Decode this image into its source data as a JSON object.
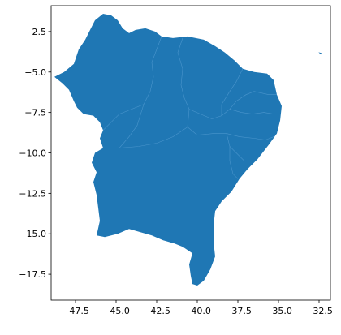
{
  "chart_data": {
    "type": "map",
    "title": "",
    "xlabel": "",
    "ylabel": "",
    "xlim": [
      -49.0,
      -31.8
    ],
    "ylim": [
      -19.1,
      -0.9
    ],
    "grid": false,
    "fill_color": "#1f77b4",
    "x_ticks": [
      -47.5,
      -45.0,
      -42.5,
      -40.0,
      -37.5,
      -35.0,
      -32.5
    ],
    "x_tick_labels": [
      "−47.5",
      "−45.0",
      "−42.5",
      "−40.0",
      "−37.5",
      "−35.0",
      "−32.5"
    ],
    "y_ticks": [
      -2.5,
      -5.0,
      -7.5,
      -10.0,
      -12.5,
      -15.0,
      -17.5
    ],
    "y_tick_labels": [
      "−2.5",
      "−5.0",
      "−7.5",
      "−10.0",
      "−12.5",
      "−15.0",
      "−17.5"
    ],
    "outline": [
      [
        -48.8,
        -5.3
      ],
      [
        -48.2,
        -5.0
      ],
      [
        -47.6,
        -4.5
      ],
      [
        -47.3,
        -3.6
      ],
      [
        -46.9,
        -3.0
      ],
      [
        -46.6,
        -2.4
      ],
      [
        -46.3,
        -1.8
      ],
      [
        -45.8,
        -1.4
      ],
      [
        -45.3,
        -1.5
      ],
      [
        -44.9,
        -1.8
      ],
      [
        -44.6,
        -2.3
      ],
      [
        -44.2,
        -2.6
      ],
      [
        -43.8,
        -2.4
      ],
      [
        -43.2,
        -2.3
      ],
      [
        -42.6,
        -2.5
      ],
      [
        -42.2,
        -2.8
      ],
      [
        -41.5,
        -2.9
      ],
      [
        -40.6,
        -2.8
      ],
      [
        -39.6,
        -3.0
      ],
      [
        -38.9,
        -3.4
      ],
      [
        -38.3,
        -3.8
      ],
      [
        -37.7,
        -4.3
      ],
      [
        -37.2,
        -4.8
      ],
      [
        -36.5,
        -5.0
      ],
      [
        -35.7,
        -5.1
      ],
      [
        -35.3,
        -5.5
      ],
      [
        -35.1,
        -6.4
      ],
      [
        -34.8,
        -7.1
      ],
      [
        -34.9,
        -8.0
      ],
      [
        -35.1,
        -8.8
      ],
      [
        -35.6,
        -9.5
      ],
      [
        -36.3,
        -10.4
      ],
      [
        -36.9,
        -11.0
      ],
      [
        -37.4,
        -11.6
      ],
      [
        -37.9,
        -12.4
      ],
      [
        -38.5,
        -13.0
      ],
      [
        -38.9,
        -13.6
      ],
      [
        -39.0,
        -14.5
      ],
      [
        -39.0,
        -15.5
      ],
      [
        -38.9,
        -16.4
      ],
      [
        -39.2,
        -17.2
      ],
      [
        -39.6,
        -17.9
      ],
      [
        -40.0,
        -18.2
      ],
      [
        -40.3,
        -18.1
      ],
      [
        -40.4,
        -17.6
      ],
      [
        -40.5,
        -16.9
      ],
      [
        -40.3,
        -16.2
      ],
      [
        -40.9,
        -15.8
      ],
      [
        -41.4,
        -15.6
      ],
      [
        -42.1,
        -15.4
      ],
      [
        -42.8,
        -15.1
      ],
      [
        -43.5,
        -14.9
      ],
      [
        -44.2,
        -14.7
      ],
      [
        -44.9,
        -15.0
      ],
      [
        -45.7,
        -15.2
      ],
      [
        -46.2,
        -15.1
      ],
      [
        -46.0,
        -14.2
      ],
      [
        -46.1,
        -13.4
      ],
      [
        -46.2,
        -12.6
      ],
      [
        -46.4,
        -11.8
      ],
      [
        -46.2,
        -11.2
      ],
      [
        -46.5,
        -10.6
      ],
      [
        -46.3,
        -10.0
      ],
      [
        -45.8,
        -9.7
      ],
      [
        -46.0,
        -9.1
      ],
      [
        -45.8,
        -8.6
      ],
      [
        -46.0,
        -8.1
      ],
      [
        -46.4,
        -7.7
      ],
      [
        -47.0,
        -7.6
      ],
      [
        -47.4,
        -7.2
      ],
      [
        -47.6,
        -6.8
      ],
      [
        -47.9,
        -6.1
      ],
      [
        -48.3,
        -5.7
      ],
      [
        -48.8,
        -5.3
      ]
    ],
    "internal_borders": [
      [
        [
          -42.2,
          -2.8
        ],
        [
          -42.5,
          -3.6
        ],
        [
          -42.8,
          -4.4
        ],
        [
          -42.7,
          -5.3
        ],
        [
          -42.9,
          -6.2
        ],
        [
          -43.3,
          -7.0
        ],
        [
          -44.8,
          -7.6
        ],
        [
          -45.8,
          -8.6
        ]
      ],
      [
        [
          -40.9,
          -2.9
        ],
        [
          -41.2,
          -3.8
        ],
        [
          -40.9,
          -4.8
        ],
        [
          -41.0,
          -5.8
        ],
        [
          -40.8,
          -6.6
        ],
        [
          -40.5,
          -7.3
        ],
        [
          -39.8,
          -7.6
        ],
        [
          -39.1,
          -7.9
        ],
        [
          -38.5,
          -7.7
        ],
        [
          -38.0,
          -7.3
        ]
      ],
      [
        [
          -38.0,
          -7.3
        ],
        [
          -37.6,
          -6.8
        ],
        [
          -37.0,
          -6.4
        ],
        [
          -36.5,
          -6.2
        ],
        [
          -35.6,
          -6.4
        ],
        [
          -35.1,
          -6.4
        ]
      ],
      [
        [
          -37.2,
          -4.8
        ],
        [
          -37.6,
          -5.6
        ],
        [
          -38.0,
          -6.2
        ],
        [
          -38.5,
          -7.0
        ],
        [
          -38.5,
          -7.7
        ]
      ],
      [
        [
          -38.0,
          -7.3
        ],
        [
          -37.3,
          -7.5
        ],
        [
          -36.6,
          -7.6
        ],
        [
          -35.9,
          -7.5
        ],
        [
          -35.3,
          -7.6
        ],
        [
          -34.9,
          -7.6
        ]
      ],
      [
        [
          -40.5,
          -7.3
        ],
        [
          -40.6,
          -8.4
        ],
        [
          -40.0,
          -8.9
        ],
        [
          -39.0,
          -8.8
        ],
        [
          -38.2,
          -8.8
        ],
        [
          -37.4,
          -9.0
        ],
        [
          -36.5,
          -9.1
        ],
        [
          -35.8,
          -9.2
        ],
        [
          -35.3,
          -9.0
        ]
      ],
      [
        [
          -38.2,
          -8.8
        ],
        [
          -38.0,
          -9.6
        ],
        [
          -37.6,
          -10.0
        ],
        [
          -37.1,
          -10.5
        ],
        [
          -36.6,
          -10.5
        ]
      ],
      [
        [
          -38.0,
          -9.6
        ],
        [
          -38.0,
          -10.5
        ],
        [
          -37.8,
          -11.3
        ],
        [
          -37.5,
          -11.6
        ]
      ],
      [
        [
          -43.3,
          -7.0
        ],
        [
          -43.7,
          -8.3
        ],
        [
          -44.2,
          -9.0
        ],
        [
          -44.8,
          -9.7
        ],
        [
          -45.8,
          -9.7
        ]
      ],
      [
        [
          -40.6,
          -8.4
        ],
        [
          -41.5,
          -9.0
        ],
        [
          -42.5,
          -9.4
        ],
        [
          -43.6,
          -9.6
        ],
        [
          -44.8,
          -9.7
        ]
      ]
    ],
    "islands": [
      [
        [
          -32.45,
          -3.83
        ],
        [
          -32.38,
          -3.85
        ],
        [
          -32.4,
          -3.88
        ]
      ]
    ]
  }
}
